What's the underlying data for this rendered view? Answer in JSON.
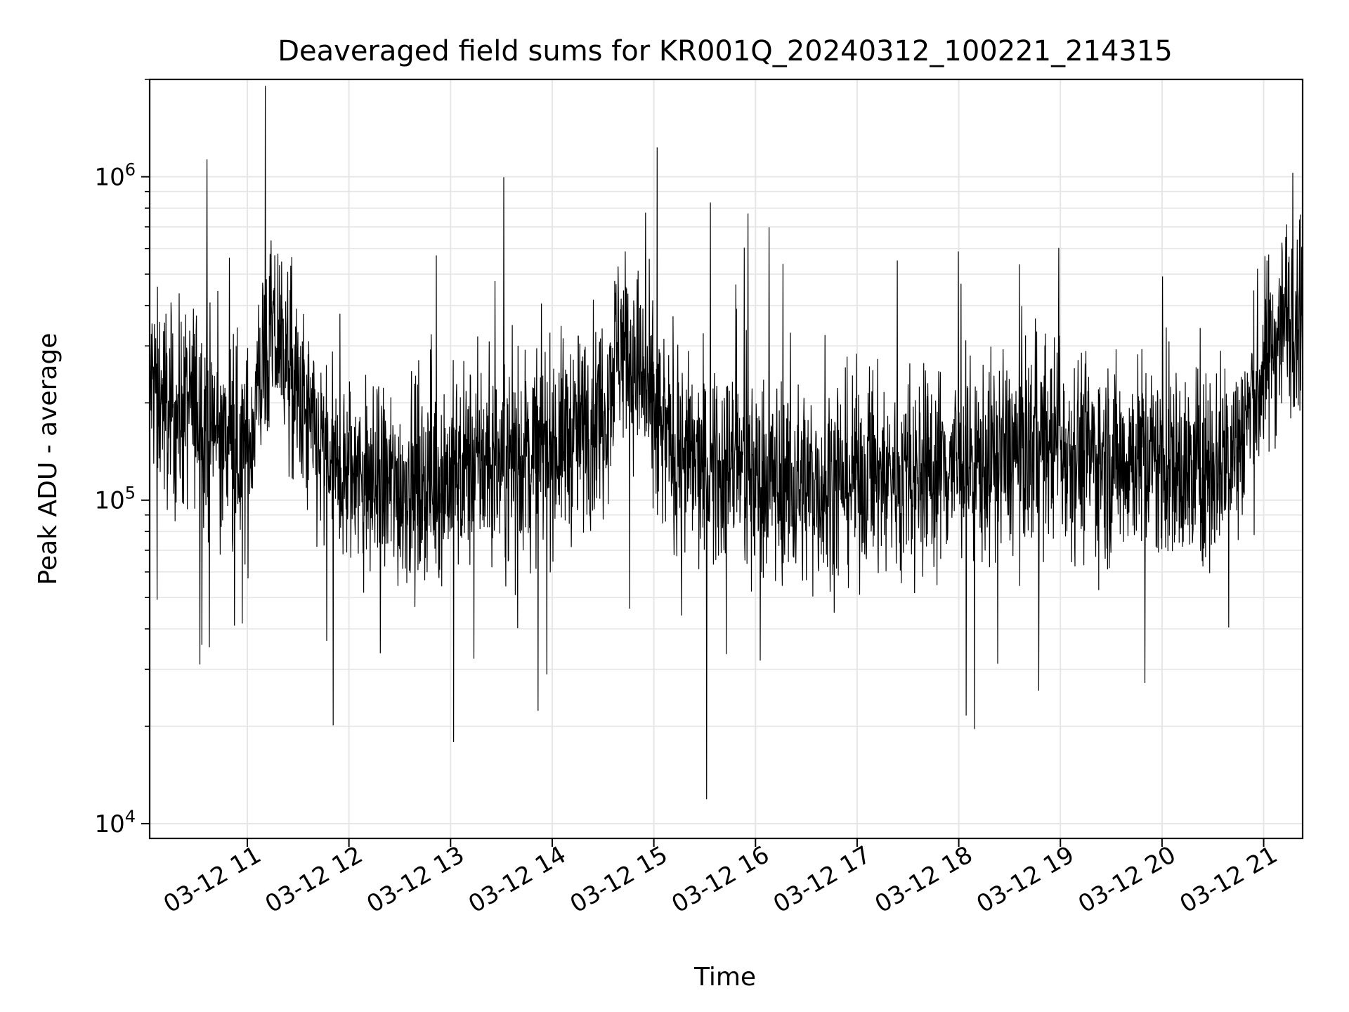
{
  "chart_data": {
    "type": "line",
    "title": "Deaveraged field sums for KR001Q_20240312_100221_214315",
    "xlabel": "Time",
    "ylabel": "Peak ADU - average",
    "yscale": "log",
    "ylim": [
      9000,
      2000000
    ],
    "xlim": [
      "2024-03-12 10:02:21",
      "2024-03-12 21:23:00"
    ],
    "grid": true,
    "line_color": "#000000",
    "grid_color": "#e6e6e6",
    "x_ticks": [
      {
        "value": "2024-03-12 11:00",
        "label": "03-12 11"
      },
      {
        "value": "2024-03-12 12:00",
        "label": "03-12 12"
      },
      {
        "value": "2024-03-12 13:00",
        "label": "03-12 13"
      },
      {
        "value": "2024-03-12 14:00",
        "label": "03-12 14"
      },
      {
        "value": "2024-03-12 15:00",
        "label": "03-12 15"
      },
      {
        "value": "2024-03-12 16:00",
        "label": "03-12 16"
      },
      {
        "value": "2024-03-12 17:00",
        "label": "03-12 17"
      },
      {
        "value": "2024-03-12 18:00",
        "label": "03-12 18"
      },
      {
        "value": "2024-03-12 19:00",
        "label": "03-12 19"
      },
      {
        "value": "2024-03-12 20:00",
        "label": "03-12 20"
      },
      {
        "value": "2024-03-12 21:00",
        "label": "03-12 21"
      }
    ],
    "y_ticks": [
      {
        "value": 10000,
        "base": "10",
        "exp": "4"
      },
      {
        "value": 100000,
        "base": "10",
        "exp": "5"
      },
      {
        "value": 1000000,
        "base": "10",
        "exp": "6"
      }
    ],
    "series": [
      {
        "x": [
          "2024-03-12 10:05",
          "2024-03-12 10:15",
          "2024-03-12 10:30",
          "2024-03-12 10:45",
          "2024-03-12 11:00",
          "2024-03-12 11:10",
          "2024-03-12 11:20",
          "2024-03-12 11:30",
          "2024-03-12 11:40",
          "2024-03-12 11:50",
          "2024-03-12 12:00",
          "2024-03-12 12:15",
          "2024-03-12 12:30",
          "2024-03-12 12:45",
          "2024-03-12 13:00",
          "2024-03-12 13:15",
          "2024-03-12 13:30",
          "2024-03-12 13:45",
          "2024-03-12 14:00",
          "2024-03-12 14:15",
          "2024-03-12 14:30",
          "2024-03-12 14:40",
          "2024-03-12 14:50",
          "2024-03-12 15:00",
          "2024-03-12 15:15",
          "2024-03-12 15:30",
          "2024-03-12 15:45",
          "2024-03-12 16:00",
          "2024-03-12 16:15",
          "2024-03-12 16:30",
          "2024-03-12 16:45",
          "2024-03-12 17:00",
          "2024-03-12 17:15",
          "2024-03-12 17:30",
          "2024-03-12 17:45",
          "2024-03-12 18:00",
          "2024-03-12 18:15",
          "2024-03-12 18:30",
          "2024-03-12 18:45",
          "2024-03-12 19:00",
          "2024-03-12 19:15",
          "2024-03-12 19:30",
          "2024-03-12 19:45",
          "2024-03-12 20:00",
          "2024-03-12 20:15",
          "2024-03-12 20:30",
          "2024-03-12 20:45",
          "2024-03-12 21:00",
          "2024-03-12 21:10",
          "2024-03-12 21:20"
        ],
        "y": [
          230000,
          180000,
          200000,
          150000,
          140000,
          280000,
          330000,
          200000,
          150000,
          120000,
          120000,
          110000,
          110000,
          115000,
          120000,
          130000,
          130000,
          140000,
          150000,
          160000,
          190000,
          320000,
          260000,
          170000,
          140000,
          120000,
          130000,
          120000,
          115000,
          110000,
          115000,
          120000,
          120000,
          120000,
          125000,
          130000,
          130000,
          140000,
          150000,
          150000,
          140000,
          130000,
          140000,
          130000,
          120000,
          130000,
          150000,
          250000,
          350000,
          420000
        ]
      }
    ]
  }
}
